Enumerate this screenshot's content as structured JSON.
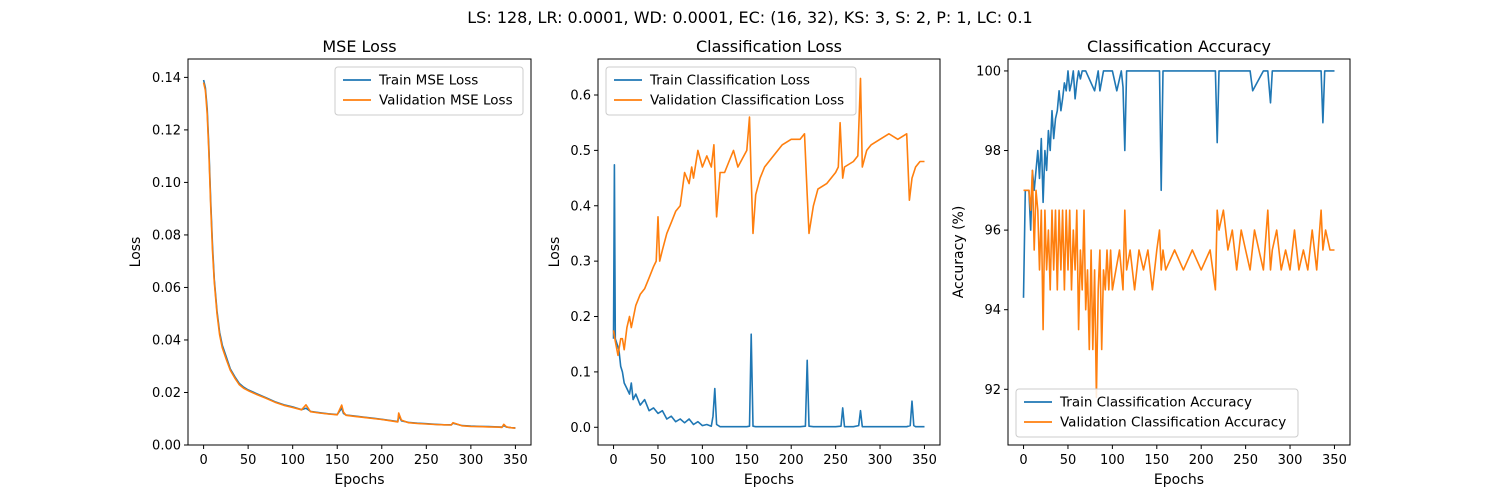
{
  "figure": {
    "suptitle": "LS: 128, LR: 0.0001, WD: 0.0001, EC: (16, 32), KS: 3, S: 2, P: 1, LC: 0.1"
  },
  "colors": {
    "train": "#1f77b4",
    "validation": "#ff7f0e"
  },
  "chart_data": [
    {
      "type": "line",
      "title": "MSE Loss",
      "xlabel": "Epochs",
      "ylabel": "Loss",
      "xlim": [
        -17.5,
        367.5
      ],
      "ylim": [
        0.0,
        0.147
      ],
      "xticks": [
        0,
        50,
        100,
        150,
        200,
        250,
        300,
        350
      ],
      "yticks": [
        0.0,
        0.02,
        0.04,
        0.06,
        0.08,
        0.1,
        0.12,
        0.14
      ],
      "ytick_labels": [
        "0.00",
        "0.02",
        "0.04",
        "0.06",
        "0.08",
        "0.10",
        "0.12",
        "0.14"
      ],
      "legend_position": "upper right",
      "series": [
        {
          "name": "Train MSE Loss",
          "color": "#1f77b4",
          "x": [
            0,
            2,
            4,
            6,
            8,
            10,
            12,
            15,
            18,
            21,
            25,
            30,
            35,
            40,
            45,
            50,
            60,
            70,
            80,
            90,
            100,
            110,
            115,
            120,
            130,
            140,
            150,
            155,
            157,
            160,
            170,
            180,
            190,
            200,
            210,
            218,
            219,
            222,
            230,
            240,
            250,
            260,
            270,
            278,
            280,
            290,
            300,
            310,
            320,
            330,
            335,
            337,
            340,
            345,
            350
          ],
          "y": [
            0.139,
            0.136,
            0.128,
            0.113,
            0.093,
            0.076,
            0.063,
            0.051,
            0.043,
            0.038,
            0.034,
            0.029,
            0.026,
            0.0235,
            0.022,
            0.021,
            0.0195,
            0.018,
            0.0165,
            0.0153,
            0.0145,
            0.0135,
            0.014,
            0.0128,
            0.0123,
            0.0119,
            0.0116,
            0.014,
            0.012,
            0.0114,
            0.011,
            0.0106,
            0.0102,
            0.0098,
            0.0093,
            0.0089,
            0.0112,
            0.0092,
            0.0086,
            0.0083,
            0.0081,
            0.0079,
            0.0077,
            0.0077,
            0.0083,
            0.0074,
            0.0072,
            0.0071,
            0.007,
            0.0069,
            0.0068,
            0.0074,
            0.0068,
            0.0066,
            0.0065
          ]
        },
        {
          "name": "Validation MSE Loss",
          "color": "#ff7f0e",
          "x": [
            0,
            2,
            4,
            6,
            8,
            10,
            12,
            15,
            18,
            21,
            25,
            30,
            35,
            40,
            45,
            50,
            60,
            70,
            80,
            90,
            100,
            110,
            115,
            120,
            130,
            140,
            150,
            155,
            157,
            160,
            170,
            180,
            190,
            200,
            210,
            218,
            219,
            222,
            230,
            240,
            250,
            260,
            270,
            278,
            280,
            290,
            300,
            310,
            320,
            330,
            335,
            337,
            340,
            345,
            350
          ],
          "y": [
            0.138,
            0.135,
            0.126,
            0.111,
            0.091,
            0.074,
            0.062,
            0.05,
            0.042,
            0.037,
            0.033,
            0.0285,
            0.0255,
            0.023,
            0.0216,
            0.0207,
            0.0192,
            0.0178,
            0.0163,
            0.0151,
            0.0143,
            0.0134,
            0.0153,
            0.0127,
            0.0122,
            0.0118,
            0.0115,
            0.0152,
            0.0125,
            0.0113,
            0.0109,
            0.0105,
            0.0101,
            0.0097,
            0.0092,
            0.0088,
            0.0122,
            0.0095,
            0.0085,
            0.0082,
            0.008,
            0.0078,
            0.0077,
            0.0076,
            0.0085,
            0.0073,
            0.0071,
            0.007,
            0.0069,
            0.0068,
            0.0067,
            0.0079,
            0.0069,
            0.0066,
            0.0064
          ]
        }
      ]
    },
    {
      "type": "line",
      "title": "Classification Loss",
      "xlabel": "Epochs",
      "ylabel": "Loss",
      "xlim": [
        -17.5,
        367.5
      ],
      "ylim": [
        -0.032,
        0.665
      ],
      "xticks": [
        0,
        50,
        100,
        150,
        200,
        250,
        300,
        350
      ],
      "yticks": [
        0.0,
        0.1,
        0.2,
        0.3,
        0.4,
        0.5,
        0.6
      ],
      "ytick_labels": [
        "0.0",
        "0.1",
        "0.2",
        "0.3",
        "0.4",
        "0.5",
        "0.6"
      ],
      "legend_position": "upper left",
      "series": [
        {
          "name": "Train Classification Loss",
          "color": "#1f77b4",
          "x": [
            0,
            1,
            2,
            4,
            6,
            8,
            10,
            12,
            15,
            18,
            20,
            22,
            25,
            30,
            35,
            40,
            45,
            50,
            55,
            60,
            65,
            70,
            75,
            80,
            85,
            90,
            95,
            100,
            105,
            110,
            112,
            114,
            116,
            120,
            130,
            140,
            150,
            153,
            155,
            157,
            160,
            170,
            180,
            190,
            200,
            210,
            216,
            218,
            220,
            225,
            230,
            240,
            250,
            256,
            258,
            260,
            270,
            276,
            278,
            280,
            290,
            300,
            310,
            320,
            330,
            334,
            336,
            338,
            340,
            345,
            350
          ],
          "y": [
            0.16,
            0.474,
            0.16,
            0.15,
            0.14,
            0.11,
            0.1,
            0.08,
            0.07,
            0.06,
            0.08,
            0.05,
            0.06,
            0.04,
            0.05,
            0.03,
            0.035,
            0.025,
            0.03,
            0.015,
            0.02,
            0.01,
            0.015,
            0.008,
            0.015,
            0.005,
            0.01,
            0.003,
            0.005,
            0.002,
            0.02,
            0.07,
            0.005,
            0.001,
            0.001,
            0.001,
            0.001,
            0.002,
            0.168,
            0.002,
            0.001,
            0.001,
            0.001,
            0.001,
            0.001,
            0.001,
            0.002,
            0.121,
            0.002,
            0.001,
            0.001,
            0.001,
            0.001,
            0.002,
            0.035,
            0.001,
            0.001,
            0.003,
            0.03,
            0.001,
            0.001,
            0.001,
            0.001,
            0.001,
            0.001,
            0.003,
            0.047,
            0.003,
            0.001,
            0.001,
            0.001
          ]
        },
        {
          "name": "Validation Classification Loss",
          "color": "#ff7f0e",
          "x": [
            0,
            2,
            5,
            8,
            10,
            12,
            15,
            18,
            20,
            25,
            30,
            35,
            40,
            45,
            48,
            50,
            52,
            55,
            60,
            65,
            70,
            75,
            80,
            85,
            88,
            90,
            95,
            100,
            105,
            110,
            113,
            116,
            120,
            125,
            130,
            135,
            140,
            150,
            153,
            155,
            157,
            160,
            165,
            170,
            180,
            190,
            200,
            210,
            215,
            218,
            220,
            225,
            230,
            240,
            250,
            253,
            255,
            258,
            260,
            270,
            275,
            278,
            280,
            285,
            290,
            300,
            310,
            320,
            330,
            333,
            336,
            340,
            345,
            350
          ],
          "y": [
            0.175,
            0.155,
            0.13,
            0.16,
            0.16,
            0.14,
            0.18,
            0.2,
            0.18,
            0.22,
            0.24,
            0.25,
            0.27,
            0.29,
            0.3,
            0.38,
            0.3,
            0.32,
            0.35,
            0.37,
            0.39,
            0.4,
            0.46,
            0.44,
            0.47,
            0.45,
            0.5,
            0.47,
            0.49,
            0.47,
            0.51,
            0.38,
            0.46,
            0.46,
            0.48,
            0.5,
            0.47,
            0.5,
            0.56,
            0.45,
            0.35,
            0.42,
            0.45,
            0.47,
            0.49,
            0.51,
            0.52,
            0.52,
            0.53,
            0.42,
            0.35,
            0.4,
            0.43,
            0.44,
            0.46,
            0.47,
            0.55,
            0.45,
            0.47,
            0.48,
            0.49,
            0.63,
            0.47,
            0.5,
            0.51,
            0.52,
            0.53,
            0.52,
            0.53,
            0.41,
            0.45,
            0.47,
            0.48,
            0.48
          ]
        }
      ]
    },
    {
      "type": "line",
      "title": "Classification Accuracy",
      "xlabel": "Epochs",
      "ylabel": "Accuracy (%)",
      "xlim": [
        -17.5,
        367.5
      ],
      "ylim": [
        90.6,
        100.3
      ],
      "xticks": [
        0,
        50,
        100,
        150,
        200,
        250,
        300,
        350
      ],
      "yticks": [
        92,
        94,
        96,
        98,
        100
      ],
      "ytick_labels": [
        "92",
        "94",
        "96",
        "98",
        "100"
      ],
      "legend_position": "lower left",
      "series": [
        {
          "name": "Train Classification Accuracy",
          "color": "#1f77b4",
          "x": [
            0,
            2,
            4,
            6,
            8,
            10,
            12,
            14,
            16,
            18,
            20,
            22,
            24,
            26,
            28,
            30,
            32,
            34,
            36,
            38,
            40,
            42,
            44,
            46,
            48,
            50,
            52,
            54,
            56,
            58,
            60,
            62,
            64,
            66,
            68,
            70,
            80,
            84,
            86,
            90,
            100,
            105,
            110,
            112,
            114,
            116,
            120,
            150,
            153,
            155,
            157,
            160,
            210,
            216,
            218,
            220,
            250,
            255,
            258,
            270,
            275,
            278,
            280,
            330,
            335,
            337,
            339,
            341,
            345,
            350
          ],
          "y": [
            94.3,
            97,
            97,
            97,
            96,
            97.5,
            97,
            97.5,
            98,
            97.3,
            98.3,
            96.7,
            98,
            97.5,
            98.5,
            98,
            99,
            98.3,
            98.8,
            99,
            99.5,
            99,
            99.3,
            99.7,
            99.5,
            100,
            99.5,
            99.7,
            100,
            99.3,
            99.7,
            100,
            99.8,
            100,
            100,
            100,
            99.5,
            100,
            99.5,
            100,
            100,
            99.5,
            100,
            99.6,
            98,
            100,
            100,
            100,
            100,
            97,
            100,
            100,
            100,
            100,
            98.2,
            100,
            100,
            100,
            99.5,
            100,
            100,
            99.2,
            100,
            100,
            100,
            98.7,
            100,
            100,
            100,
            100
          ]
        },
        {
          "name": "Validation Classification Accuracy",
          "color": "#ff7f0e",
          "x": [
            0,
            2,
            4,
            6,
            8,
            10,
            12,
            14,
            16,
            18,
            20,
            22,
            24,
            26,
            28,
            30,
            32,
            34,
            36,
            38,
            40,
            42,
            44,
            46,
            48,
            50,
            52,
            54,
            56,
            58,
            60,
            62,
            64,
            66,
            68,
            70,
            72,
            74,
            76,
            78,
            80,
            82,
            84,
            86,
            88,
            90,
            92,
            94,
            96,
            98,
            100,
            104,
            108,
            112,
            114,
            116,
            120,
            125,
            130,
            135,
            140,
            145,
            150,
            153,
            155,
            157,
            160,
            170,
            180,
            190,
            200,
            210,
            216,
            218,
            220,
            225,
            230,
            235,
            240,
            245,
            250,
            255,
            260,
            265,
            270,
            275,
            278,
            280,
            285,
            290,
            295,
            300,
            305,
            310,
            315,
            320,
            325,
            330,
            335,
            337,
            340,
            345,
            350
          ],
          "y": [
            97,
            97,
            97,
            97,
            96.5,
            97.5,
            95.5,
            97,
            96.5,
            95,
            96.5,
            93.5,
            96.5,
            95,
            96,
            94.5,
            96.5,
            95,
            96.5,
            94.5,
            96.5,
            95,
            96.5,
            94.5,
            96.5,
            95,
            96.5,
            94.5,
            96,
            95,
            96.5,
            93.5,
            95.5,
            94.5,
            96.5,
            94,
            95,
            93,
            95.5,
            93,
            95,
            91.8,
            94.5,
            95.5,
            93,
            95,
            94.5,
            95.5,
            94.5,
            95.5,
            94.5,
            95,
            95.5,
            94.5,
            96.5,
            95,
            95.5,
            94.5,
            95.5,
            95,
            95.5,
            94.5,
            95.5,
            96,
            95,
            95.5,
            95,
            95.5,
            95,
            95.5,
            95,
            95.5,
            94.5,
            96.5,
            96,
            96.5,
            95.5,
            96,
            95,
            96,
            95.5,
            95,
            96,
            95.5,
            95,
            96.5,
            95,
            95.5,
            96,
            95,
            95.5,
            95,
            96,
            95,
            95.5,
            95,
            96,
            95,
            96.5,
            95.5,
            96,
            95.5,
            95.5
          ]
        }
      ]
    }
  ]
}
